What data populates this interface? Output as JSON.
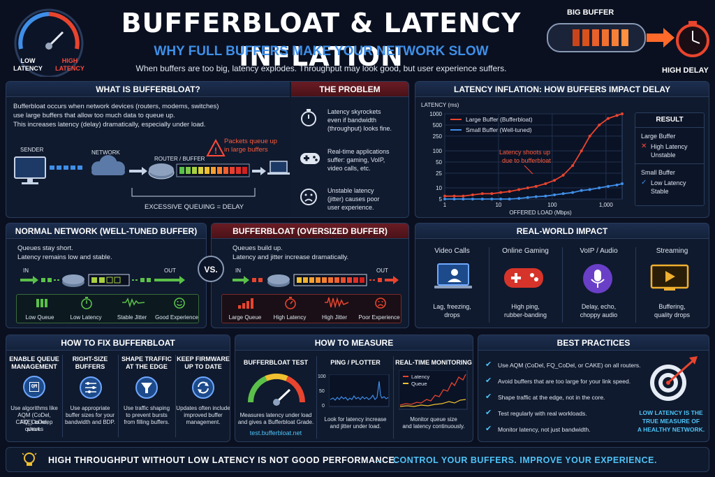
{
  "header": {
    "title": "BUFFERBLOAT & LATENCY INFLATION",
    "subtitle": "WHY FULL BUFFERS MAKE YOUR NETWORK SLOW",
    "tagline": "When buffers are too big, latency explodes. Throughput may look good, but user experience suffers.",
    "gauge_low": "LOW\nLATENCY",
    "gauge_low_1": "LOW",
    "gauge_low_2": "LATENCY",
    "gauge_high_1": "HIGH",
    "gauge_high_2": "LATENCY",
    "big_buffer": "BIG BUFFER",
    "high_delay": "HIGH DELAY"
  },
  "what": {
    "title": "WHAT IS BUFFERBLOAT?",
    "body1": "Bufferbloat occurs when network devices (routers, modems, switches)",
    "body2": "use large buffers that allow too much data to queue up.",
    "body3": "This increases latency (delay) dramatically, especially under load.",
    "sender": "SENDER",
    "network": "NETWORK",
    "router": "ROUTER / BUFFER",
    "packets1": "Packets queue up",
    "packets2": "in large buffers",
    "queuing": "EXCESSIVE QUEUING = DELAY"
  },
  "problem": {
    "title": "THE PROBLEM",
    "items": [
      {
        "l1": "Latency skyrockets",
        "l2": "even if bandwidth",
        "l3": "(throughput) looks fine."
      },
      {
        "l1": "Real-time applications",
        "l2": "suffer: gaming, VoIP,",
        "l3": "video calls, etc."
      },
      {
        "l1": "Unstable latency",
        "l2": "(jitter) causes poor",
        "l3": "user experience."
      }
    ]
  },
  "chart": {
    "title": "LATENCY INFLATION: HOW BUFFERS IMPACT DELAY",
    "annotation1": "Latency shoots up",
    "annotation2": "due to bufferbloat",
    "result_title": "RESULT",
    "large_label": "Large Buffer",
    "large_r1": "High Latency",
    "large_r2": "Unstable",
    "small_label": "Small Buffer",
    "small_r1": "Low Latency",
    "small_r2": "Stable"
  },
  "chart_data": {
    "type": "line",
    "title": "LATENCY INFLATION: HOW BUFFERS IMPACT DELAY",
    "xlabel": "OFFERED LOAD (Mbps)",
    "ylabel": "LATENCY (ms)",
    "x_scale": "log",
    "y_scale": "log",
    "xlim": [
      1,
      2000
    ],
    "ylim": [
      5,
      1000
    ],
    "x_ticks": [
      1,
      10,
      100,
      1000
    ],
    "x_tick_labels": [
      "1",
      "10",
      "100",
      "1,000"
    ],
    "y_ticks": [
      5,
      10,
      25,
      50,
      100,
      250,
      500,
      1000
    ],
    "y_tick_labels": [
      "5",
      "10",
      "25",
      "50",
      "100",
      "250",
      "500",
      "1000"
    ],
    "grid": true,
    "legend": "top-left",
    "series": [
      {
        "name": "Large Buffer (Bufferbloat)",
        "color": "#e8442e",
        "x": [
          1,
          1.5,
          2.2,
          3.3,
          5,
          7.5,
          11,
          16,
          24,
          35,
          50,
          75,
          110,
          160,
          240,
          350,
          500,
          750,
          1100,
          1600,
          2000
        ],
        "y": [
          6,
          6,
          6,
          6.5,
          7,
          7,
          7.5,
          8,
          9,
          10,
          11,
          13,
          16,
          22,
          40,
          100,
          250,
          500,
          750,
          900,
          1000
        ]
      },
      {
        "name": "Small Buffer (Well-tuned)",
        "color": "#3f8fe8",
        "x": [
          1,
          1.5,
          2.2,
          3.3,
          5,
          7.5,
          11,
          16,
          24,
          35,
          50,
          75,
          110,
          160,
          240,
          350,
          500,
          750,
          1100,
          1600,
          2000
        ],
        "y": [
          5,
          5,
          5,
          5,
          5,
          5,
          5,
          5,
          5.2,
          5.5,
          5.8,
          6,
          6.5,
          7,
          7.5,
          8.5,
          9,
          10,
          11,
          12,
          13
        ]
      }
    ]
  },
  "normal": {
    "title": "NORMAL NETWORK (WELL-TUNED BUFFER)",
    "l1": "Queues stay short.",
    "l2": "Latency remains low and stable.",
    "in": "IN",
    "out": "OUT",
    "items": [
      "Low Queue",
      "Low Latency",
      "Stable Jitter",
      "Good Experience"
    ]
  },
  "vs": "VS.",
  "bloat": {
    "title": "BUFFERBLOAT (OVERSIZED BUFFER)",
    "l1": "Queues build up.",
    "l2": "Latency and jitter increase dramatically.",
    "in": "IN",
    "out": "OUT",
    "items": [
      "Large Queue",
      "High Latency",
      "High Jitter",
      "Poor Experience"
    ]
  },
  "impact": {
    "title": "REAL-WORLD IMPACT",
    "items": [
      {
        "name": "Video Calls",
        "d1": "Lag, freezing,",
        "d2": "drops"
      },
      {
        "name": "Online Gaming",
        "d1": "High ping,",
        "d2": "rubber-banding"
      },
      {
        "name": "VoIP / Audio",
        "d1": "Delay, echo,",
        "d2": "choppy audio"
      },
      {
        "name": "Streaming",
        "d1": "Buffering,",
        "d2": "quality drops"
      }
    ]
  },
  "fix": {
    "title": "HOW TO FIX BUFFERBLOAT",
    "items": [
      {
        "h1": "ENABLE QUEUE",
        "h2": "MANAGEMENT",
        "icon": "QM",
        "d": [
          "Use algorithms like",
          "AQM (CoDel, FQ_CoDel,",
          "CAKE) to keep queues",
          "short."
        ]
      },
      {
        "h1": "RIGHT-SIZE",
        "h2": "BUFFERS",
        "icon": "",
        "d": [
          "Use appropriate",
          "buffer sizes for your",
          "bandwidth and BDP."
        ]
      },
      {
        "h1": "SHAPE TRAFFIC",
        "h2": "AT THE EDGE",
        "icon": "",
        "d": [
          "Use traffic shaping",
          "to prevent bursts",
          "from filling buffers."
        ]
      },
      {
        "h1": "KEEP FIRMWARE",
        "h2": "UP TO DATE",
        "icon": "",
        "d": [
          "Updates often include",
          "improved buffer",
          "management."
        ]
      }
    ]
  },
  "measure": {
    "title": "HOW TO MEASURE",
    "test_title": "BUFFERBLOAT TEST",
    "test_d1": "Measures latency under load",
    "test_d2": "and gives a Bufferbloat Grade.",
    "test_url": "test.bufferbloat.net",
    "ping_title": "PING / PLOTTER",
    "ping_ticks": [
      "100",
      "50",
      "0"
    ],
    "ping_d1": "Look for latency increase",
    "ping_d2": "and jitter under load.",
    "rt_title": "REAL-TIME MONITORING",
    "rt_latency": "Latency",
    "rt_queue": "Queue",
    "rt_d1": "Monitor queue size",
    "rt_d2": "and latency continuously."
  },
  "best": {
    "title": "BEST PRACTICES",
    "items": [
      "Use AQM (CoDel, FQ_CoDel, or CAKE) on all routers.",
      "Avoid buffers that are too large for your link speed.",
      "Shape traffic at the edge, not in the core.",
      "Test regularly with real workloads.",
      "Monitor latency, not just bandwidth."
    ],
    "q1": "LOW LATENCY IS THE",
    "q2": "TRUE MEASURE OF",
    "q3": "A HEALTHY NETWORK."
  },
  "footer": {
    "left": "HIGH THROUGHPUT WITHOUT LOW LATENCY IS NOT GOOD PERFORMANCE.",
    "right": "CONTROL YOUR BUFFERS. IMPROVE YOUR EXPERIENCE."
  },
  "colors": {
    "accent_red": "#e8442e",
    "accent_blue": "#3f8fe8",
    "accent_green": "#5bc04a",
    "accent_cyan": "#4fc3f7"
  }
}
